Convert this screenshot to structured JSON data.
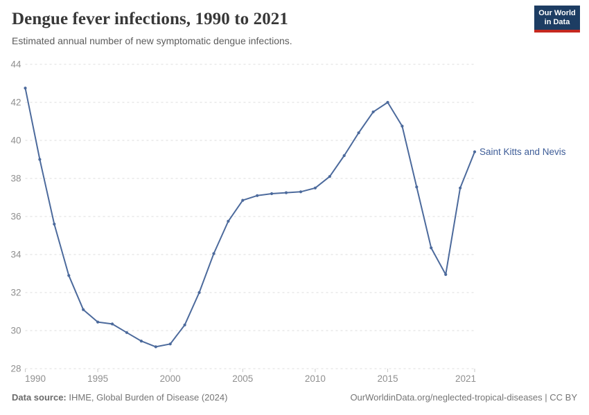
{
  "header": {
    "title": "Dengue fever infections, 1990 to 2021",
    "subtitle": "Estimated annual number of new symptomatic dengue infections.",
    "logo": {
      "line1": "Our World",
      "line2": "in Data",
      "bg_color": "#1d3d63",
      "accent_color": "#c5281f"
    }
  },
  "chart_data": {
    "type": "line",
    "title": "Dengue fever infections, 1990 to 2021",
    "subtitle": "Estimated annual number of new symptomatic dengue infections.",
    "xlabel": "",
    "ylabel": "",
    "xlim": [
      1990,
      2021
    ],
    "ylim": [
      28,
      44
    ],
    "yticks": [
      28,
      30,
      32,
      34,
      36,
      38,
      40,
      42,
      44
    ],
    "xticks": [
      1990,
      1995,
      2000,
      2005,
      2010,
      2015,
      2021
    ],
    "grid": "horizontal-dashed",
    "legend_position": "end-of-line",
    "series": [
      {
        "name": "Saint Kitts and Nevis",
        "color": "#4c6a9c",
        "label_color": "#3d5c97",
        "x": [
          1990,
          1991,
          1992,
          1993,
          1994,
          1995,
          1996,
          1997,
          1998,
          1999,
          2000,
          2001,
          2002,
          2003,
          2004,
          2005,
          2006,
          2007,
          2008,
          2009,
          2010,
          2011,
          2012,
          2013,
          2014,
          2015,
          2016,
          2017,
          2018,
          2019,
          2020,
          2021
        ],
        "values": [
          42.75,
          39.0,
          35.6,
          32.9,
          31.1,
          30.45,
          30.35,
          29.9,
          29.45,
          29.15,
          29.3,
          30.3,
          32.0,
          34.05,
          35.75,
          36.85,
          37.1,
          37.2,
          37.25,
          37.3,
          37.5,
          38.1,
          39.2,
          40.4,
          41.5,
          42.0,
          40.75,
          37.55,
          34.35,
          32.95,
          37.5,
          39.4
        ]
      }
    ],
    "colors": {
      "gridline": "#dcdcdc",
      "tick_label": "#8f8f8f",
      "tick_mark": "#c9c9c9"
    }
  },
  "footer": {
    "datasource_label": "Data source:",
    "datasource_value": " IHME, Global Burden of Disease (2024)",
    "link": "OurWorldinData.org/neglected-tropical-diseases | CC BY"
  }
}
